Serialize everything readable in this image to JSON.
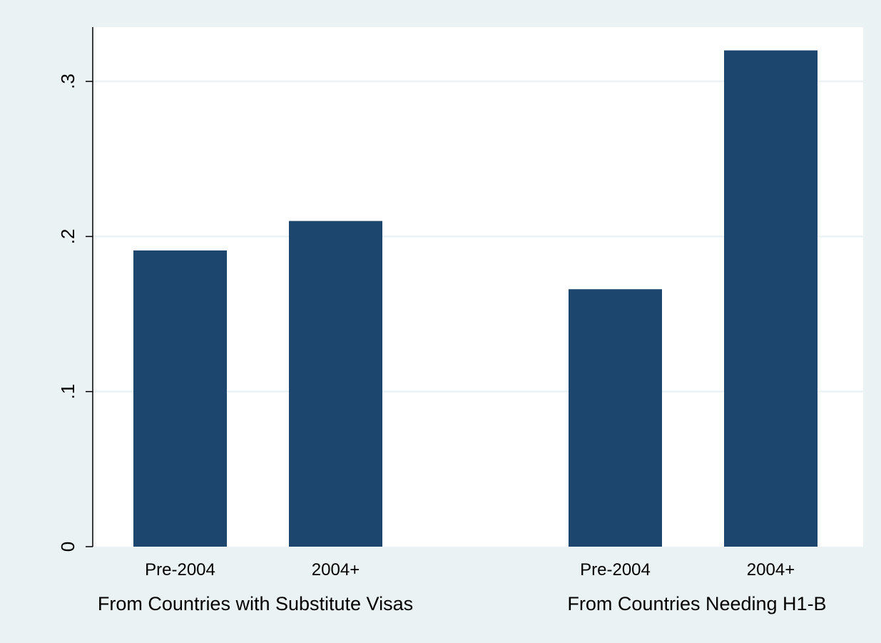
{
  "chart_data": {
    "type": "bar",
    "title": "",
    "xlabel": "",
    "ylabel": "",
    "ylim": [
      0,
      0.335
    ],
    "yticks": [
      {
        "value": 0,
        "label": "0"
      },
      {
        "value": 0.1,
        "label": ".1"
      },
      {
        "value": 0.2,
        "label": ".2"
      },
      {
        "value": 0.3,
        "label": ".3"
      }
    ],
    "grid": true,
    "colors": {
      "background": "#eaf2f3",
      "plot": "#ffffff",
      "bar": "#1c466e",
      "grid": "#eaf2f3",
      "axis": "#000000"
    },
    "groups": [
      {
        "label": "From Countries with Substitute Visas",
        "bars": [
          {
            "category": "Pre-2004",
            "value": 0.191
          },
          {
            "category": "2004+",
            "value": 0.21
          }
        ]
      },
      {
        "label": "From Countries Needing H1-B",
        "bars": [
          {
            "category": "Pre-2004",
            "value": 0.166
          },
          {
            "category": "2004+",
            "value": 0.32
          }
        ]
      }
    ]
  }
}
